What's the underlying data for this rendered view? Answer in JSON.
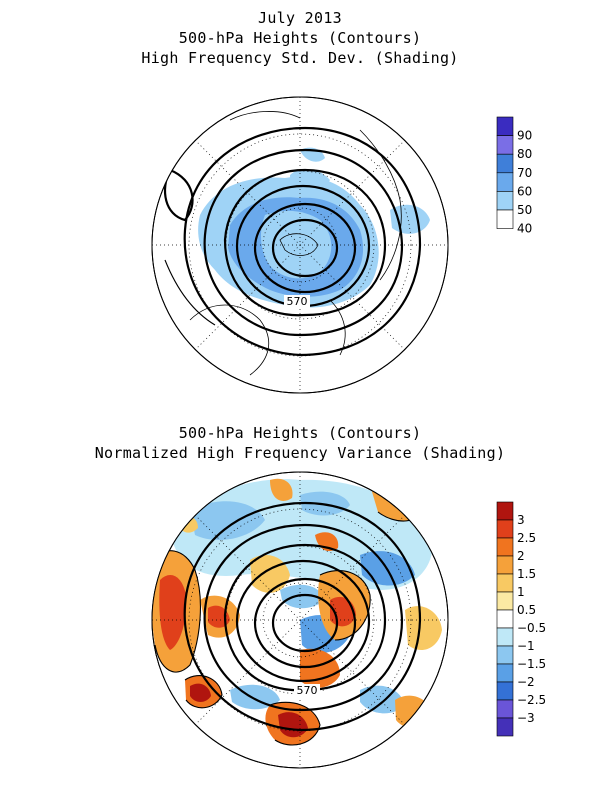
{
  "top_panel": {
    "title_line1": "July 2013",
    "title_line2": "500-hPa Heights (Contours)",
    "title_line3": "High Frequency Std. Dev. (Shading)",
    "contour_label": "570",
    "colorbar": {
      "labels": [
        "90",
        "80",
        "70",
        "60",
        "50",
        "40"
      ],
      "colors": [
        "#3a2cc0",
        "#7a6ee6",
        "#3f7fd9",
        "#6aa9ec",
        "#9fd3f6",
        "#ffffff"
      ]
    }
  },
  "bottom_panel": {
    "title_line1": "500-hPa Heights (Contours)",
    "title_line2": "Normalized High Frequency Variance (Shading)",
    "contour_label": "570",
    "colorbar": {
      "labels": [
        "3",
        "2.5",
        "2",
        "1.5",
        "1",
        "0.5",
        "−0.5",
        "−1",
        "−1.5",
        "−2",
        "−2.5",
        "−3"
      ],
      "colors": [
        "#b0150f",
        "#e0401b",
        "#f0741f",
        "#f5a13a",
        "#f8c963",
        "#fbe9a3",
        "#ffffff",
        "#bfe8f7",
        "#8cc7f0",
        "#5aa0e6",
        "#3471d6",
        "#6a55d8",
        "#4430b8"
      ]
    }
  }
}
